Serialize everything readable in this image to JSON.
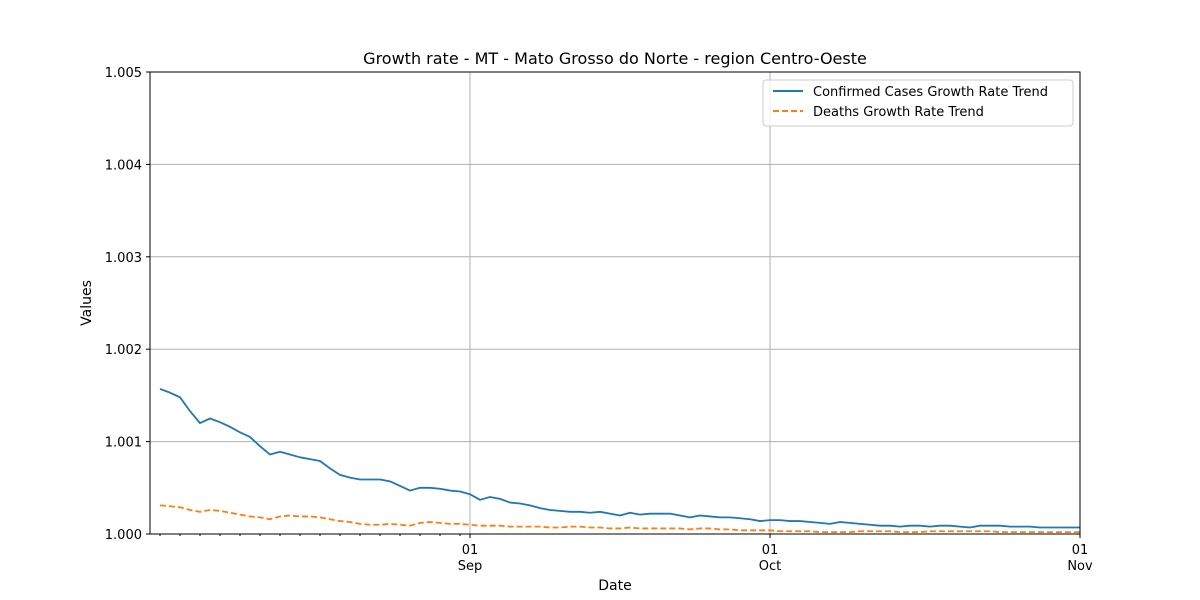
{
  "chart_data": {
    "type": "line",
    "title": "Growth rate - MT - Mato Grosso do Norte - region Centro-Oeste",
    "xlabel": "Date",
    "ylabel": "Values",
    "ylim": [
      1.0,
      1.005
    ],
    "xlim": [
      "2020-07-31",
      "2020-11-01"
    ],
    "y_ticks": [
      "1.000",
      "1.001",
      "1.002",
      "1.003",
      "1.004",
      "1.005"
    ],
    "x_major_ticks": [
      {
        "date": "2020-09-01",
        "day": "01",
        "month": "Sep"
      },
      {
        "date": "2020-10-01",
        "day": "01",
        "month": "Oct"
      },
      {
        "date": "2020-11-01",
        "day": "01",
        "month": "Nov"
      }
    ],
    "x_minor_ticks": [
      "2020-08-01",
      "2020-08-03",
      "2020-08-05",
      "2020-08-07",
      "2020-08-09",
      "2020-08-11",
      "2020-08-13",
      "2020-08-15",
      "2020-08-17",
      "2020-08-19",
      "2020-08-21",
      "2020-08-23",
      "2020-08-25",
      "2020-08-27",
      "2020-08-29",
      "2020-08-31"
    ],
    "grid": true,
    "legend_position": "top-right",
    "x": [
      "2020-08-01",
      "2020-08-02",
      "2020-08-03",
      "2020-08-04",
      "2020-08-05",
      "2020-08-06",
      "2020-08-07",
      "2020-08-08",
      "2020-08-09",
      "2020-08-10",
      "2020-08-11",
      "2020-08-12",
      "2020-08-13",
      "2020-08-14",
      "2020-08-15",
      "2020-08-16",
      "2020-08-17",
      "2020-08-18",
      "2020-08-19",
      "2020-08-20",
      "2020-08-21",
      "2020-08-22",
      "2020-08-23",
      "2020-08-24",
      "2020-08-25",
      "2020-08-26",
      "2020-08-27",
      "2020-08-28",
      "2020-08-29",
      "2020-08-30",
      "2020-08-31",
      "2020-09-01",
      "2020-09-02",
      "2020-09-03",
      "2020-09-04",
      "2020-09-05",
      "2020-09-06",
      "2020-09-07",
      "2020-09-08",
      "2020-09-09",
      "2020-09-10",
      "2020-09-11",
      "2020-09-12",
      "2020-09-13",
      "2020-09-14",
      "2020-09-15",
      "2020-09-16",
      "2020-09-17",
      "2020-09-18",
      "2020-09-19",
      "2020-09-20",
      "2020-09-21",
      "2020-09-22",
      "2020-09-23",
      "2020-09-24",
      "2020-09-25",
      "2020-09-26",
      "2020-09-27",
      "2020-09-28",
      "2020-09-29",
      "2020-09-30",
      "2020-10-01",
      "2020-10-02",
      "2020-10-03",
      "2020-10-04",
      "2020-10-05",
      "2020-10-06",
      "2020-10-07",
      "2020-10-08",
      "2020-10-09",
      "2020-10-10",
      "2020-10-11",
      "2020-10-12",
      "2020-10-13",
      "2020-10-14",
      "2020-10-15",
      "2020-10-16",
      "2020-10-17",
      "2020-10-18",
      "2020-10-19",
      "2020-10-20",
      "2020-10-21",
      "2020-10-22",
      "2020-10-23",
      "2020-10-24",
      "2020-10-25",
      "2020-10-26",
      "2020-10-27",
      "2020-10-28",
      "2020-10-29",
      "2020-10-30",
      "2020-10-31",
      "2020-11-01"
    ],
    "series": [
      {
        "name": "Confirmed Cases Growth Rate Trend",
        "color": "#1f77b4",
        "dash": "solid",
        "values": [
          1.00157,
          1.00153,
          1.00148,
          1.00133,
          1.0012,
          1.00125,
          1.00121,
          1.00116,
          1.0011,
          1.00105,
          1.00095,
          1.00086,
          1.00089,
          1.00086,
          1.00083,
          1.00081,
          1.00079,
          1.00071,
          1.00064,
          1.00061,
          1.00059,
          1.00059,
          1.00059,
          1.00057,
          1.00052,
          1.00047,
          1.0005,
          1.0005,
          1.00049,
          1.00047,
          1.00046,
          1.00043,
          1.00037,
          1.0004,
          1.00038,
          1.00034,
          1.00033,
          1.00031,
          1.00028,
          1.00026,
          1.00025,
          1.00024,
          1.00024,
          1.00023,
          1.00024,
          1.00022,
          1.0002,
          1.00023,
          1.00021,
          1.00022,
          1.00022,
          1.00022,
          1.0002,
          1.00018,
          1.0002,
          1.00019,
          1.00018,
          1.00018,
          1.00017,
          1.00016,
          1.00014,
          1.00015,
          1.00015,
          1.00014,
          1.00014,
          1.00013,
          1.00012,
          1.00011,
          1.00013,
          1.00012,
          1.00011,
          1.0001,
          1.00009,
          1.00009,
          1.00008,
          1.00009,
          1.00009,
          1.00008,
          1.00009,
          1.00009,
          1.00008,
          1.00007,
          1.00009,
          1.00009,
          1.00009,
          1.00008,
          1.00008,
          1.00008,
          1.00007,
          1.00007,
          1.00007,
          1.00007,
          1.00007
        ]
      },
      {
        "name": "Deaths Growth Rate Trend",
        "color": "#ff7f0e",
        "dash": "dashed",
        "values": [
          1.00031,
          1.0003,
          1.00029,
          1.00026,
          1.00024,
          1.00026,
          1.00025,
          1.00023,
          1.00021,
          1.00019,
          1.00018,
          1.00016,
          1.00019,
          1.0002,
          1.00019,
          1.00019,
          1.00018,
          1.00016,
          1.00014,
          1.00013,
          1.00011,
          1.0001,
          1.0001,
          1.00011,
          1.0001,
          1.00009,
          1.00012,
          1.00013,
          1.00012,
          1.00011,
          1.00011,
          1.0001,
          1.00009,
          1.00009,
          1.00009,
          1.00008,
          1.00008,
          1.00008,
          1.00008,
          1.00007,
          1.00007,
          1.00008,
          1.00008,
          1.00007,
          1.00007,
          1.00006,
          1.00006,
          1.00007,
          1.00006,
          1.00006,
          1.00006,
          1.00006,
          1.00006,
          1.00005,
          1.00006,
          1.00006,
          1.00005,
          1.00005,
          1.00004,
          1.00004,
          1.00004,
          1.00004,
          1.00003,
          1.00003,
          1.00003,
          1.00003,
          1.00002,
          1.00002,
          1.00002,
          1.00002,
          1.00003,
          1.00003,
          1.00003,
          1.00003,
          1.00002,
          1.00002,
          1.00002,
          1.00003,
          1.00003,
          1.00003,
          1.00003,
          1.00003,
          1.00003,
          1.00003,
          1.00002,
          1.00002,
          1.00002,
          1.00002,
          1.00002,
          1.00002,
          1.00002,
          1.00002,
          1.00002
        ]
      }
    ]
  }
}
